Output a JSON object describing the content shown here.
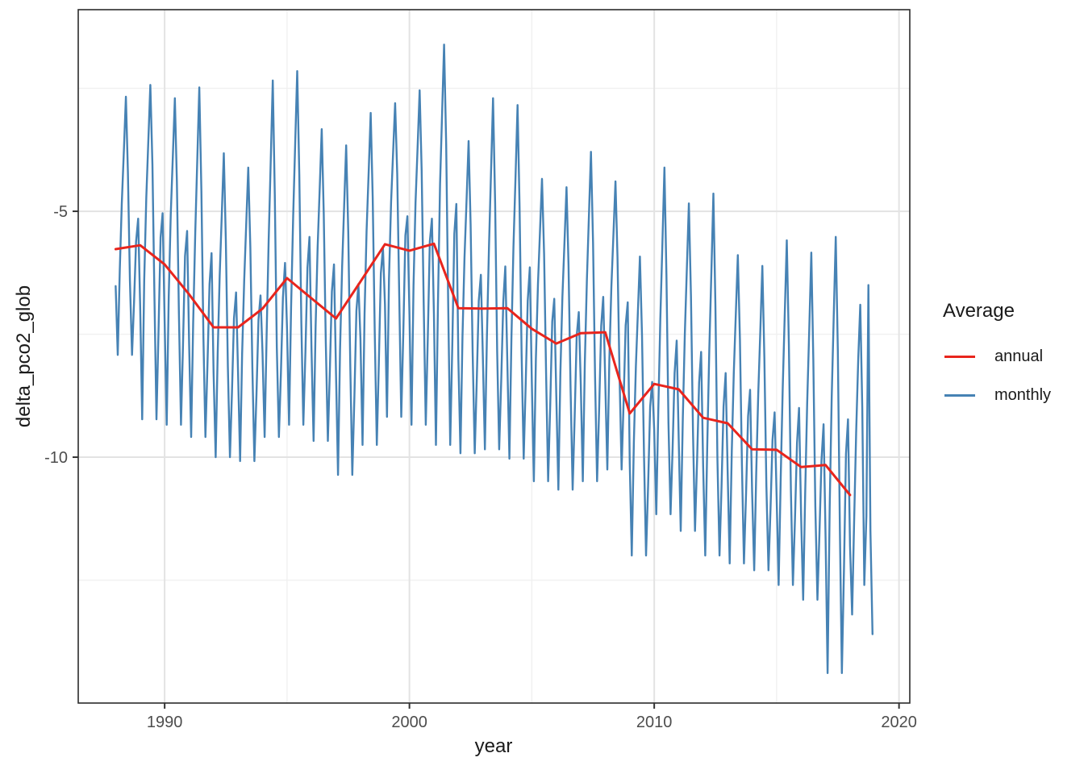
{
  "chart_data": {
    "type": "line",
    "title": "",
    "xlabel": "year",
    "ylabel": "delta_pco2_glob",
    "xlim": [
      1986.47,
      2020.44
    ],
    "ylim": [
      -15.0,
      -0.9
    ],
    "x_ticks": [
      1990,
      2000,
      2010,
      2020
    ],
    "y_ticks": [
      -5,
      -10
    ],
    "x_minor_gridlines": [
      1995,
      2005,
      2015
    ],
    "y_minor_gridlines": [
      -2.5,
      -7.5,
      -12.5
    ],
    "grid": true,
    "theme": "bw",
    "legend": {
      "title": "Average",
      "position": "right",
      "entries": [
        {
          "label": "annual",
          "color": "#E8251D"
        },
        {
          "label": "monthly",
          "color": "#4682B4"
        }
      ]
    },
    "series": [
      {
        "name": "annual",
        "color": "#E8251D",
        "x": [
          1988,
          1989,
          1990,
          1991,
          1992,
          1993,
          1994,
          1995,
          1996,
          1997,
          1998,
          1999,
          2000,
          2001,
          2002,
          2003,
          2004,
          2005,
          2006,
          2007,
          2008,
          2009,
          2010,
          2011,
          2012,
          2013,
          2014,
          2015,
          2016,
          2017,
          2018
        ],
        "y": [
          -5.77,
          -5.69,
          -6.08,
          -6.69,
          -7.36,
          -7.36,
          -6.98,
          -6.36,
          -6.77,
          -7.18,
          -6.43,
          -5.67,
          -5.8,
          -5.66,
          -6.97,
          -6.98,
          -6.97,
          -7.39,
          -7.69,
          -7.48,
          -7.46,
          -9.11,
          -8.51,
          -8.62,
          -9.2,
          -9.31,
          -9.84,
          -9.85,
          -10.2,
          -10.16,
          -10.77
        ]
      },
      {
        "name": "monthly",
        "color": "#4682B4",
        "x_start": 1988.0,
        "x_step": 0.0833333,
        "y": [
          -6.52,
          -7.92,
          -6.2,
          -4.84,
          -3.76,
          -2.67,
          -4.22,
          -6.42,
          -7.92,
          -6.85,
          -5.62,
          -5.15,
          -6.93,
          -9.23,
          -6.4,
          -4.71,
          -3.57,
          -2.43,
          -4.06,
          -6.75,
          -9.23,
          -7.46,
          -5.53,
          -5.04,
          -7.22,
          -9.34,
          -6.73,
          -5.07,
          -3.88,
          -2.7,
          -4.39,
          -7.06,
          -9.34,
          -7.71,
          -5.91,
          -5.4,
          -7.71,
          -9.59,
          -7.27,
          -5.43,
          -3.95,
          -2.48,
          -4.59,
          -7.56,
          -9.59,
          -8.14,
          -6.48,
          -5.85,
          -8.28,
          -10.0,
          -7.89,
          -6.3,
          -5.06,
          -3.82,
          -5.59,
          -8.15,
          -10.0,
          -8.68,
          -7.18,
          -6.65,
          -8.31,
          -10.08,
          -7.9,
          -6.39,
          -5.25,
          -4.11,
          -5.74,
          -8.18,
          -10.08,
          -8.72,
          -7.2,
          -6.71,
          -7.89,
          -9.59,
          -7.5,
          -5.59,
          -3.96,
          -2.34,
          -4.66,
          -7.76,
          -9.59,
          -8.29,
          -6.75,
          -6.05,
          -7.4,
          -9.34,
          -6.96,
          -5.1,
          -3.62,
          -2.15,
          -4.26,
          -7.25,
          -9.34,
          -7.85,
          -6.15,
          -5.52,
          -7.79,
          -9.67,
          -7.35,
          -5.74,
          -4.53,
          -3.33,
          -5.05,
          -7.64,
          -9.67,
          -8.22,
          -6.63,
          -6.08,
          -8.29,
          -10.36,
          -7.82,
          -6.12,
          -4.89,
          -3.66,
          -5.42,
          -8.13,
          -10.36,
          -8.77,
          -7.02,
          -6.48,
          -7.59,
          -9.75,
          -7.09,
          -5.4,
          -4.2,
          -3.0,
          -4.72,
          -7.43,
          -9.75,
          -8.09,
          -6.26,
          -5.74,
          -6.9,
          -9.18,
          -6.37,
          -4.81,
          -3.8,
          -2.8,
          -4.24,
          -6.72,
          -9.18,
          -7.43,
          -5.49,
          -5.1,
          -7.04,
          -9.34,
          -6.51,
          -4.82,
          -3.68,
          -2.54,
          -4.17,
          -6.86,
          -9.34,
          -7.57,
          -5.62,
          -5.15,
          -7.09,
          -9.75,
          -6.89,
          -4.45,
          -3.03,
          -1.61,
          -3.64,
          -6.89,
          -9.75,
          -7.71,
          -5.46,
          -4.85,
          -8.0,
          -9.92,
          -7.56,
          -5.95,
          -4.76,
          -3.57,
          -5.27,
          -7.86,
          -9.92,
          -8.45,
          -6.82,
          -6.29,
          -7.98,
          -9.84,
          -7.55,
          -5.7,
          -4.2,
          -2.7,
          -4.84,
          -7.84,
          -9.84,
          -8.41,
          -6.84,
          -6.12,
          -8.04,
          -10.03,
          -7.58,
          -5.73,
          -4.29,
          -2.84,
          -4.91,
          -7.89,
          -10.03,
          -8.5,
          -6.82,
          -6.14,
          -8.48,
          -10.49,
          -8.01,
          -6.48,
          -5.41,
          -4.34,
          -5.87,
          -8.32,
          -10.49,
          -8.94,
          -7.24,
          -6.78,
          -8.73,
          -10.66,
          -8.28,
          -6.74,
          -5.62,
          -4.51,
          -6.1,
          -8.58,
          -10.66,
          -9.18,
          -7.54,
          -7.05,
          -8.53,
          -10.49,
          -8.08,
          -6.37,
          -5.08,
          -3.79,
          -5.64,
          -8.38,
          -10.49,
          -8.99,
          -7.33,
          -6.74,
          -8.44,
          -10.25,
          -8.02,
          -6.54,
          -5.46,
          -4.39,
          -5.93,
          -8.3,
          -10.25,
          -8.86,
          -7.32,
          -6.85,
          -10.12,
          -12.0,
          -9.69,
          -8.15,
          -7.04,
          -5.92,
          -7.52,
          -9.98,
          -12.0,
          -10.56,
          -8.97,
          -8.47,
          -9.44,
          -11.16,
          -9.04,
          -7.19,
          -5.65,
          -4.11,
          -6.31,
          -9.31,
          -11.16,
          -9.84,
          -8.29,
          -7.63,
          -9.63,
          -11.5,
          -9.2,
          -7.49,
          -6.16,
          -4.84,
          -6.73,
          -9.48,
          -11.5,
          -10.06,
          -8.48,
          -7.86,
          -10.18,
          -12.0,
          -9.76,
          -7.83,
          -6.24,
          -4.64,
          -6.92,
          -10.04,
          -12.0,
          -10.6,
          -8.97,
          -8.29,
          -10.31,
          -12.16,
          -9.88,
          -8.28,
          -7.09,
          -5.89,
          -7.6,
          -10.17,
          -12.16,
          -10.74,
          -9.17,
          -8.63,
          -10.7,
          -12.3,
          -10.33,
          -8.72,
          -7.42,
          -6.11,
          -7.98,
          -10.58,
          -12.3,
          -11.07,
          -9.65,
          -9.09,
          -10.81,
          -12.6,
          -10.4,
          -8.57,
          -7.08,
          -5.59,
          -7.72,
          -10.68,
          -12.6,
          -11.23,
          -9.71,
          -9.0,
          -11.15,
          -12.9,
          -10.74,
          -8.89,
          -7.37,
          -5.84,
          -8.02,
          -11.01,
          -12.9,
          -11.55,
          -10.07,
          -9.33,
          -11.64,
          -14.39,
          -11.01,
          -8.77,
          -7.14,
          -5.52,
          -7.84,
          -11.43,
          -14.39,
          -12.28,
          -9.93,
          -9.23,
          -11.8,
          -13.2,
          -11.3,
          -9.5,
          -8.0,
          -6.9,
          -9.0,
          -12.6,
          -11.2,
          -6.5,
          -11.5,
          -13.6
        ]
      }
    ]
  },
  "colors": {
    "background": "#FFFFFF",
    "panel_background": "#FFFFFF",
    "panel_border": "#2B2B2B",
    "grid_major": "#E3E3E3",
    "grid_minor": "#F0F0F0",
    "tick_mark": "#333333",
    "tick_label": "#4D4D4D",
    "axis_title": "#1A1A1A",
    "annual": "#E8251D",
    "monthly": "#4682B4"
  }
}
